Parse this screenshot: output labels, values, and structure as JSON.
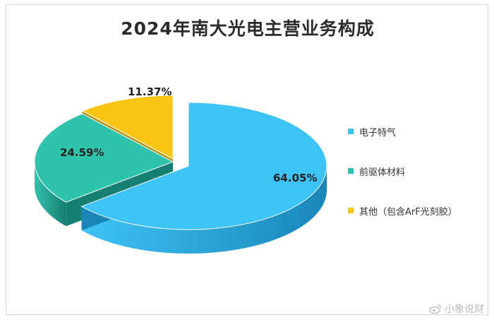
{
  "chart_data": {
    "type": "pie",
    "title": "2024年南大光电主营业务构成",
    "slices": [
      {
        "label": "电子特气",
        "value": 64.05,
        "display": "64.05%",
        "color": "#3ec3f6",
        "side": "#1a86b8"
      },
      {
        "label": "前驱体材料",
        "value": 24.59,
        "display": "24.59%",
        "color": "#2fc3ab",
        "side": "#177e72"
      },
      {
        "label": "其他（包含ArF光刻胶）",
        "value": 11.37,
        "display": "11.37%",
        "color": "#f9c514",
        "side": "#b88f08"
      }
    ],
    "legend_position": "right",
    "style": "3d-exploded"
  },
  "watermark": {
    "text": "小象说财",
    "icon": "weibo-icon"
  }
}
